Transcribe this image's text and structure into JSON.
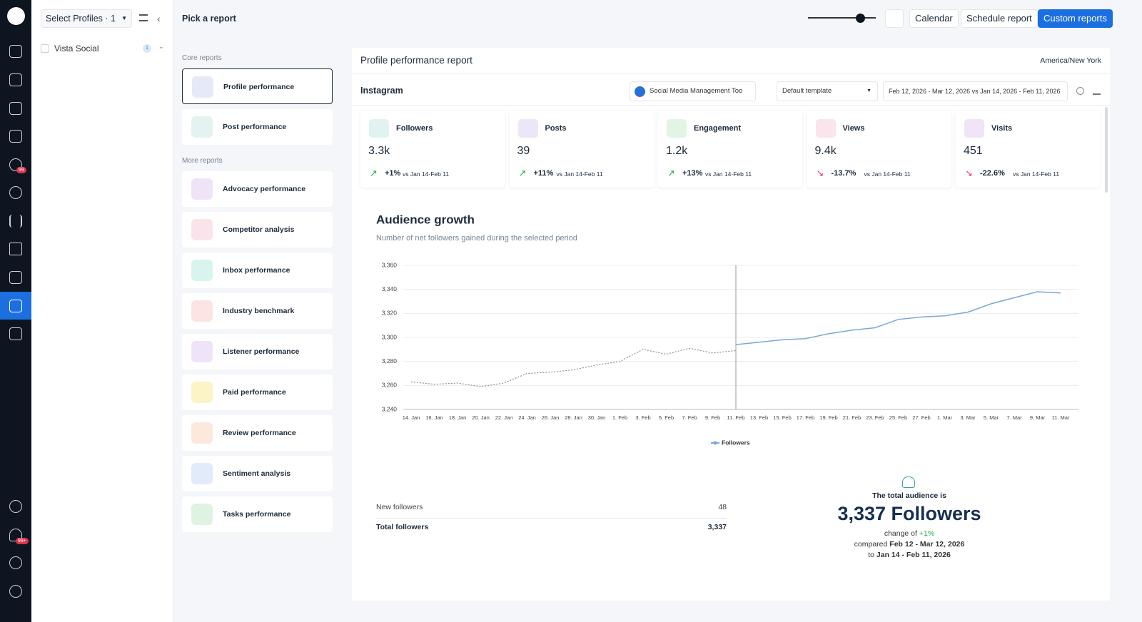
{
  "topbar": {
    "profile_select": "Select Profiles · 1",
    "title": "Pick a report",
    "buttons": [
      "Calendar",
      "Schedule report",
      "Custom reports"
    ]
  },
  "sidebar": {
    "badges": [
      "99",
      "99+"
    ]
  },
  "profiles": [
    {
      "name": "Vista Social",
      "badge": "1"
    }
  ],
  "reports": {
    "core_heading": "Core reports",
    "core": [
      "Profile performance",
      "Post performance"
    ],
    "more_heading": "More reports",
    "more": [
      "Advocacy performance",
      "Competitor analysis",
      "Inbox performance",
      "Industry benchmark",
      "Listener performance",
      "Paid performance",
      "Review performance",
      "Sentiment analysis",
      "Tasks performance"
    ]
  },
  "report": {
    "title": "Profile performance report",
    "timezone": "America/New York",
    "network": "Instagram",
    "profile": "Social Media Management Too",
    "template": "Default template",
    "date_range": "Feb 12, 2026 - Mar 12, 2026 vs Jan 14, 2026 - Feb 11, 2026"
  },
  "metrics": [
    {
      "label": "Followers",
      "value": "3.3k",
      "change": "+1%",
      "compare": "vs Jan 14-Feb 11"
    },
    {
      "label": "Posts",
      "value": "39",
      "change": "+11%",
      "compare": "vs Jan 14-Feb 11"
    },
    {
      "label": "Engagement",
      "value": "1.2k",
      "change": "+13%",
      "compare": "vs Jan 14-Feb 11"
    },
    {
      "label": "Views",
      "value": "9.4k",
      "change": "-13.7%",
      "compare": "vs Jan 14-Feb 11"
    },
    {
      "label": "Visits",
      "value": "451",
      "change": "-22.6%",
      "compare": "vs Jan 14-Feb 11"
    }
  ],
  "chart_data": {
    "type": "line",
    "title": "Audience growth",
    "subtitle": "Number of net followers gained during the selected period",
    "categories": [
      "14. Jan",
      "16. Jan",
      "18. Jan",
      "20. Jan",
      "22. Jan",
      "24. Jan",
      "26. Jan",
      "28. Jan",
      "30. Jan",
      "1. Feb",
      "3. Feb",
      "5. Feb",
      "7. Feb",
      "9. Feb",
      "11. Feb",
      "13. Feb",
      "15. Feb",
      "17. Feb",
      "19. Feb",
      "21. Feb",
      "23. Feb",
      "25. Feb",
      "27. Feb",
      "1. Mar",
      "3. Mar",
      "5. Mar",
      "7. Mar",
      "9. Mar",
      "11. Mar"
    ],
    "series": [
      {
        "name": "Followers",
        "color": "#7ba7d7",
        "values": [
          null,
          null,
          null,
          null,
          null,
          null,
          null,
          null,
          null,
          null,
          null,
          null,
          null,
          null,
          3294,
          3296,
          3298,
          3299,
          3303,
          3306,
          3308,
          3315,
          3317,
          3318,
          3321,
          3328,
          3333,
          3338,
          3337
        ]
      },
      {
        "color": "#8a8f99",
        "dashed": true,
        "values": [
          3263,
          3261,
          3262,
          3259,
          3262,
          3270,
          3271,
          3273,
          3277,
          3280,
          3290,
          3286,
          3291,
          3287,
          3289,
          null,
          null,
          null,
          null,
          null,
          null,
          null,
          null,
          null,
          null,
          null,
          null,
          null,
          null
        ]
      }
    ],
    "ylim": [
      3240,
      3360
    ],
    "yticks": [
      {
        "value": 3240,
        "label": "3,240"
      },
      {
        "value": 3260,
        "label": "3,260"
      },
      {
        "value": 3280,
        "label": "3,280"
      },
      {
        "value": 3300,
        "label": "3,300"
      },
      {
        "value": 3320,
        "label": "3,320"
      },
      {
        "value": 3340,
        "label": "3,340"
      },
      {
        "value": 3360,
        "label": "3,360"
      }
    ],
    "grid": true
  },
  "summary": {
    "rows": [
      [
        "New followers",
        "48"
      ],
      [
        "Total followers",
        "3,337"
      ]
    ],
    "total_heading": "The total audience is",
    "total": "3,337 Followers",
    "change_prefix": "change of",
    "change": "+1%",
    "compared_prefix": "compared",
    "compared": "Feb 12 - Mar 12, 2026",
    "to_prefix": "to",
    "to": "Jan 14 - Feb 11, 2026"
  }
}
